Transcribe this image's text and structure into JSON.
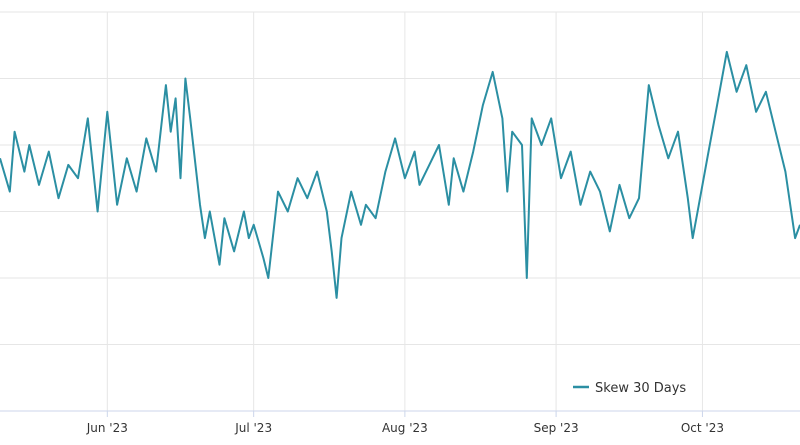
{
  "chart_data": {
    "type": "line",
    "title": "",
    "xlabel": "",
    "ylabel": "",
    "x_tick_labels": [
      "Jun '23",
      "Jul '23",
      "Aug '23",
      "Sep '23",
      "Oct '23"
    ],
    "x_tick_dates": [
      "2023-06-01",
      "2023-07-01",
      "2023-08-01",
      "2023-09-01",
      "2023-10-01"
    ],
    "xlim": [
      "2023-05-10",
      "2023-10-21"
    ],
    "y_axis_labels_visible": false,
    "grid": true,
    "legend": {
      "placement": "bottom-right",
      "entries": [
        "Skew 30 Days"
      ]
    },
    "colors": {
      "series": "#2b8fa3",
      "grid": "#e6e6e6",
      "axis": "#ccd6eb"
    },
    "series": [
      {
        "name": "Skew 30 Days",
        "points": [
          [
            "2023-05-10",
            3.8
          ],
          [
            "2023-05-12",
            3.3
          ],
          [
            "2023-05-13",
            4.2
          ],
          [
            "2023-05-15",
            3.6
          ],
          [
            "2023-05-16",
            4.0
          ],
          [
            "2023-05-18",
            3.4
          ],
          [
            "2023-05-20",
            3.9
          ],
          [
            "2023-05-22",
            3.2
          ],
          [
            "2023-05-24",
            3.7
          ],
          [
            "2023-05-26",
            3.5
          ],
          [
            "2023-05-28",
            4.4
          ],
          [
            "2023-05-30",
            3.0
          ],
          [
            "2023-06-01",
            4.5
          ],
          [
            "2023-06-03",
            3.1
          ],
          [
            "2023-06-05",
            3.8
          ],
          [
            "2023-06-07",
            3.3
          ],
          [
            "2023-06-09",
            4.1
          ],
          [
            "2023-06-11",
            3.6
          ],
          [
            "2023-06-13",
            4.9
          ],
          [
            "2023-06-14",
            4.2
          ],
          [
            "2023-06-15",
            4.7
          ],
          [
            "2023-06-16",
            3.5
          ],
          [
            "2023-06-17",
            5.0
          ],
          [
            "2023-06-18",
            4.4
          ],
          [
            "2023-06-20",
            3.1
          ],
          [
            "2023-06-21",
            2.6
          ],
          [
            "2023-06-22",
            3.0
          ],
          [
            "2023-06-24",
            2.2
          ],
          [
            "2023-06-25",
            2.9
          ],
          [
            "2023-06-27",
            2.4
          ],
          [
            "2023-06-29",
            3.0
          ],
          [
            "2023-06-30",
            2.6
          ],
          [
            "2023-07-01",
            2.8
          ],
          [
            "2023-07-03",
            2.3
          ],
          [
            "2023-07-04",
            2.0
          ],
          [
            "2023-07-06",
            3.3
          ],
          [
            "2023-07-08",
            3.0
          ],
          [
            "2023-07-10",
            3.5
          ],
          [
            "2023-07-12",
            3.2
          ],
          [
            "2023-07-14",
            3.6
          ],
          [
            "2023-07-16",
            3.0
          ],
          [
            "2023-07-17",
            2.4
          ],
          [
            "2023-07-18",
            1.7
          ],
          [
            "2023-07-19",
            2.6
          ],
          [
            "2023-07-21",
            3.3
          ],
          [
            "2023-07-23",
            2.8
          ],
          [
            "2023-07-24",
            3.1
          ],
          [
            "2023-07-26",
            2.9
          ],
          [
            "2023-07-28",
            3.6
          ],
          [
            "2023-07-30",
            4.1
          ],
          [
            "2023-08-01",
            3.5
          ],
          [
            "2023-08-03",
            3.9
          ],
          [
            "2023-08-04",
            3.4
          ],
          [
            "2023-08-06",
            3.7
          ],
          [
            "2023-08-08",
            4.0
          ],
          [
            "2023-08-10",
            3.1
          ],
          [
            "2023-08-11",
            3.8
          ],
          [
            "2023-08-13",
            3.3
          ],
          [
            "2023-08-15",
            3.9
          ],
          [
            "2023-08-17",
            4.6
          ],
          [
            "2023-08-19",
            5.1
          ],
          [
            "2023-08-21",
            4.4
          ],
          [
            "2023-08-22",
            3.3
          ],
          [
            "2023-08-23",
            4.2
          ],
          [
            "2023-08-25",
            4.0
          ],
          [
            "2023-08-26",
            2.0
          ],
          [
            "2023-08-27",
            4.4
          ],
          [
            "2023-08-29",
            4.0
          ],
          [
            "2023-08-31",
            4.4
          ],
          [
            "2023-09-02",
            3.5
          ],
          [
            "2023-09-04",
            3.9
          ],
          [
            "2023-09-06",
            3.1
          ],
          [
            "2023-09-08",
            3.6
          ],
          [
            "2023-09-10",
            3.3
          ],
          [
            "2023-09-12",
            2.7
          ],
          [
            "2023-09-14",
            3.4
          ],
          [
            "2023-09-16",
            2.9
          ],
          [
            "2023-09-18",
            3.2
          ],
          [
            "2023-09-20",
            4.9
          ],
          [
            "2023-09-22",
            4.3
          ],
          [
            "2023-09-24",
            3.8
          ],
          [
            "2023-09-26",
            4.2
          ],
          [
            "2023-09-28",
            3.2
          ],
          [
            "2023-09-29",
            2.6
          ],
          [
            "2023-09-30",
            3.0
          ],
          [
            "2023-10-02",
            3.8
          ],
          [
            "2023-10-04",
            4.6
          ],
          [
            "2023-10-06",
            5.4
          ],
          [
            "2023-10-08",
            4.8
          ],
          [
            "2023-10-10",
            5.2
          ],
          [
            "2023-10-12",
            4.5
          ],
          [
            "2023-10-14",
            4.8
          ],
          [
            "2023-10-16",
            4.2
          ],
          [
            "2023-10-18",
            3.6
          ],
          [
            "2023-10-20",
            2.6
          ],
          [
            "2023-10-21",
            2.8
          ]
        ]
      }
    ]
  }
}
